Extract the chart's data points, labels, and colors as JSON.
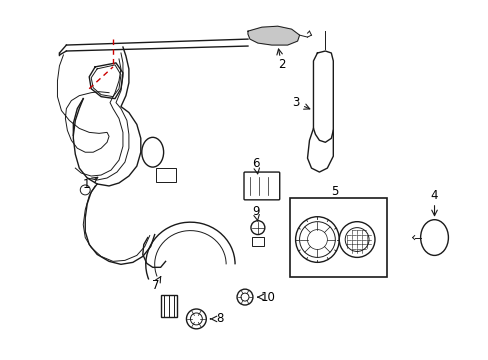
{
  "background_color": "#ffffff",
  "line_color": "#1a1a1a",
  "red_color": "#cc0000",
  "figsize": [
    4.89,
    3.6
  ],
  "dpi": 100
}
